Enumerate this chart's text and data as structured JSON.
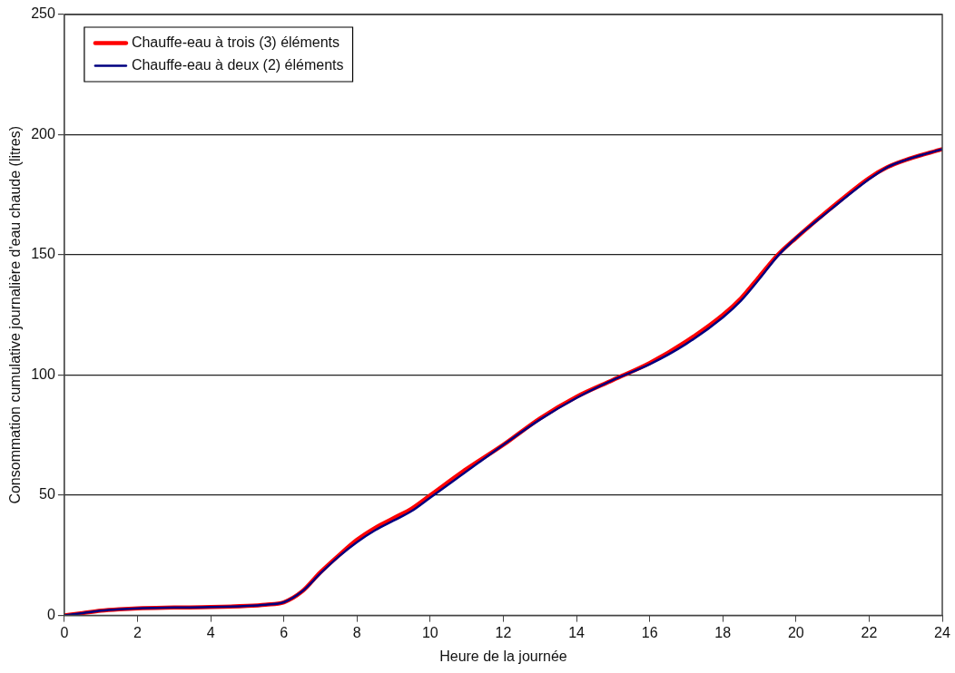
{
  "chart_data": {
    "type": "line",
    "xlabel": "Heure de la journée",
    "ylabel": "Consommation cumulative journalière d'eau chaude (litres)",
    "xlim": [
      0,
      24
    ],
    "xticks": [
      0,
      2,
      4,
      6,
      8,
      10,
      12,
      14,
      16,
      18,
      20,
      22,
      24
    ],
    "ylim": [
      0,
      250
    ],
    "yticks": [
      0,
      50,
      100,
      150,
      200,
      250
    ],
    "grid": "y",
    "legend": "top left",
    "marker": "none",
    "line_style": "solid",
    "series": [
      {
        "name": "Chauffe-eau à trois (3) éléments",
        "color": "#ff0000",
        "x": [
          0,
          0.5,
          1,
          1.5,
          2,
          3,
          4,
          5,
          5.5,
          6,
          6.5,
          7,
          7.5,
          8,
          8.5,
          9,
          9.5,
          10,
          11,
          12,
          13,
          14,
          15,
          16,
          17,
          18,
          18.5,
          19,
          19.5,
          20,
          21,
          22,
          22.5,
          23,
          24
        ],
        "values": [
          0,
          1,
          2,
          2.6,
          3,
          3.3,
          3.5,
          4,
          4.5,
          5.5,
          10,
          18,
          25,
          31.5,
          36.5,
          40.5,
          44.5,
          50,
          61,
          71,
          82,
          91,
          98,
          105,
          114,
          125,
          132,
          141,
          150,
          157,
          170,
          182,
          186.5,
          189.5,
          194
        ]
      },
      {
        "name": "Chauffe-eau à deux (2) éléments",
        "color": "#000080",
        "x": [
          0,
          0.5,
          1,
          1.5,
          2,
          3,
          4,
          5,
          5.5,
          6,
          6.5,
          7,
          7.5,
          8,
          8.5,
          9,
          9.5,
          10,
          11,
          12,
          13,
          14,
          15,
          16,
          17,
          18,
          18.5,
          19,
          19.5,
          20,
          21,
          22,
          22.5,
          23,
          24
        ],
        "values": [
          0,
          1,
          2,
          2.6,
          3,
          3.3,
          3.5,
          4,
          4.5,
          5.5,
          10,
          17.5,
          24.5,
          30.5,
          35.5,
          39.5,
          43.5,
          49,
          60,
          71,
          81.5,
          90.5,
          98,
          104.5,
          113,
          124,
          131,
          140,
          149.5,
          157,
          169.5,
          181.5,
          186.5,
          189.5,
          194
        ]
      }
    ]
  }
}
